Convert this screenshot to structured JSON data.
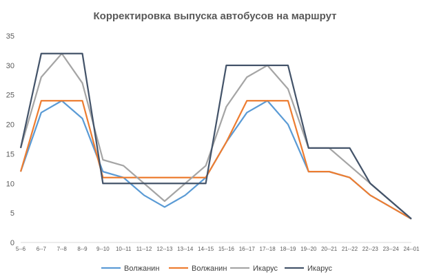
{
  "chart_data": {
    "type": "line",
    "title": "Корректировка выпуска автобусов на маршрут",
    "xlabel": "",
    "ylabel": "",
    "ylim": [
      0,
      35
    ],
    "yticks": [
      0,
      5,
      10,
      15,
      20,
      25,
      30,
      35
    ],
    "grid": false,
    "legend_position": "bottom",
    "categories": [
      "5--6",
      "6--7",
      "7--8",
      "8--9",
      "9--10",
      "10--11",
      "11--12",
      "12--13",
      "13--14",
      "14--15",
      "15--16",
      "16--17",
      "17--18",
      "18--19",
      "19--20",
      "20--21",
      "21--22",
      "22--23",
      "23--24",
      "24--01"
    ],
    "series": [
      {
        "name": "Волжанин",
        "color": "#5B9BD5",
        "values": [
          12,
          22,
          24,
          21,
          12,
          11,
          8,
          6,
          8,
          11,
          17,
          22,
          24,
          20,
          12,
          12,
          11,
          8,
          6,
          4
        ]
      },
      {
        "name": "Волжанин",
        "color": "#ED7D31",
        "values": [
          12,
          24,
          24,
          24,
          11,
          11,
          11,
          11,
          11,
          11,
          17,
          24,
          24,
          24,
          12,
          12,
          11,
          8,
          6,
          4
        ]
      },
      {
        "name": "Икарус",
        "color": "#A5A5A5",
        "values": [
          16,
          28,
          32,
          27,
          14,
          13,
          10,
          7,
          10,
          13,
          23,
          28,
          30,
          26,
          16,
          16,
          13,
          10,
          7,
          4
        ]
      },
      {
        "name": "Икарус",
        "color": "#44546A",
        "values": [
          16,
          32,
          32,
          32,
          10,
          10,
          10,
          10,
          10,
          10,
          30,
          30,
          30,
          30,
          16,
          16,
          16,
          10,
          7,
          4
        ]
      }
    ]
  }
}
